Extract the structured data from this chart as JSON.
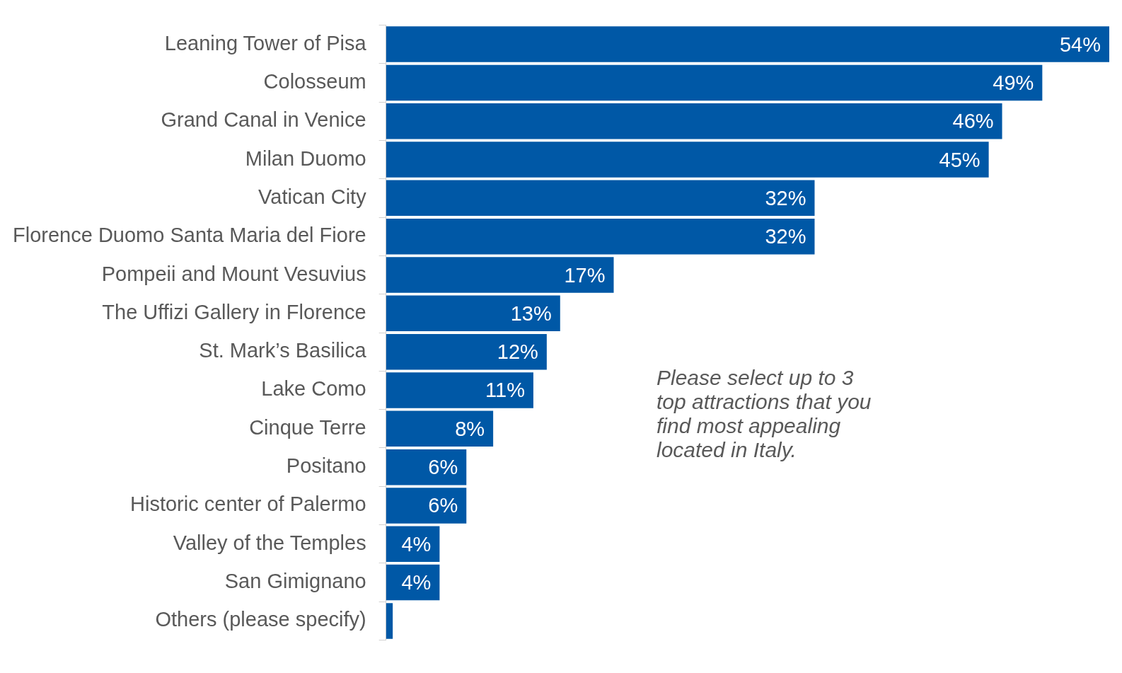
{
  "chart_data": {
    "type": "bar",
    "orientation": "horizontal",
    "categories": [
      "Leaning Tower of Pisa",
      "Colosseum",
      "Grand Canal in Venice",
      "Milan Duomo",
      "Vatican City",
      "Florence Duomo Santa Maria del Fiore",
      "Pompeii and Mount Vesuvius",
      "The Uffizi Gallery in Florence",
      "St. Mark’s Basilica",
      "Lake Como",
      "Cinque Terre",
      "Positano",
      "Historic center of Palermo",
      "Valley of the Temples",
      "San Gimignano",
      "Others (please specify)"
    ],
    "values": [
      54,
      49,
      46,
      45,
      32,
      32,
      17,
      13,
      12,
      11,
      8,
      6,
      6,
      4,
      4,
      0.5
    ],
    "value_labels": [
      "54%",
      "49%",
      "46%",
      "45%",
      "32%",
      "32%",
      "17%",
      "13%",
      "12%",
      "11%",
      "8%",
      "6%",
      "6%",
      "4%",
      "4%",
      null
    ],
    "color": "#0058a6",
    "annotations": [
      "Please select up to 3 top attractions that you find most appealing located in Italy."
    ],
    "legend": false
  }
}
